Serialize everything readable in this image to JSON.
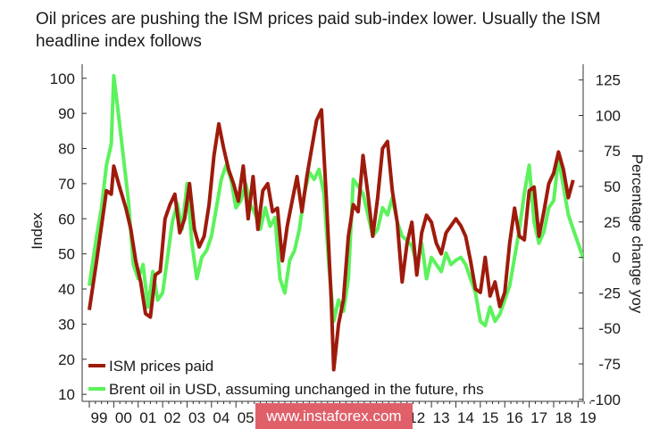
{
  "chart_data": {
    "type": "line",
    "title": "Oil prices are pushing the ISM prices paid sub-index lower. Usually the ISM headline index follows",
    "ylabel_left": "Index",
    "ylabel_right": "Percentage change yoy",
    "ylim_left": [
      8,
      104
    ],
    "yticks_left": [
      10,
      20,
      30,
      40,
      50,
      60,
      70,
      80,
      90,
      100
    ],
    "ylim_right": [
      -101.4,
      136.1
    ],
    "yticks_right": [
      -100,
      -75,
      -50,
      -25,
      0,
      25,
      50,
      75,
      100,
      125
    ],
    "xlim": [
      1999.0,
      2019.5
    ],
    "xticks": [
      {
        "x": 1999.0,
        "label": "99"
      },
      {
        "x": 2000.0,
        "label": "00"
      },
      {
        "x": 2001.0,
        "label": "01"
      },
      {
        "x": 2002.0,
        "label": "02"
      },
      {
        "x": 2003.0,
        "label": "03"
      },
      {
        "x": 2004.0,
        "label": "04"
      },
      {
        "x": 2005.0,
        "label": "05"
      },
      {
        "x": 2006.0,
        "label": "06"
      },
      {
        "x": 2007.0,
        "label": "07"
      },
      {
        "x": 2008.0,
        "label": "08"
      },
      {
        "x": 2009.0,
        "label": "09"
      },
      {
        "x": 2010.0,
        "label": "10"
      },
      {
        "x": 2011.0,
        "label": "11"
      },
      {
        "x": 2012.0,
        "label": "12"
      },
      {
        "x": 2013.0,
        "label": "13"
      },
      {
        "x": 2014.0,
        "label": "14"
      },
      {
        "x": 2015.0,
        "label": "15"
      },
      {
        "x": 2016.0,
        "label": "16"
      },
      {
        "x": 2017.0,
        "label": "17"
      },
      {
        "x": 2018.0,
        "label": "18"
      },
      {
        "x": 2019.0,
        "label": "19"
      }
    ],
    "grid": false,
    "legend_position": "bottom-left",
    "series": [
      {
        "name": "ISM prices paid",
        "axis": "left",
        "color": "#9e1b0c",
        "points": [
          [
            1999.0,
            34
          ],
          [
            1999.3,
            48
          ],
          [
            1999.5,
            58
          ],
          [
            1999.7,
            68
          ],
          [
            1999.9,
            67
          ],
          [
            2000.0,
            75
          ],
          [
            2000.2,
            70
          ],
          [
            2000.5,
            63
          ],
          [
            2000.7,
            57
          ],
          [
            2000.9,
            48
          ],
          [
            2001.1,
            42
          ],
          [
            2001.3,
            33
          ],
          [
            2001.5,
            32
          ],
          [
            2001.7,
            44
          ],
          [
            2001.9,
            45
          ],
          [
            2002.1,
            60
          ],
          [
            2002.3,
            64
          ],
          [
            2002.5,
            67
          ],
          [
            2002.7,
            56
          ],
          [
            2002.9,
            60
          ],
          [
            2003.1,
            70
          ],
          [
            2003.3,
            57
          ],
          [
            2003.5,
            52
          ],
          [
            2003.7,
            55
          ],
          [
            2003.9,
            64
          ],
          [
            2004.1,
            78
          ],
          [
            2004.3,
            87
          ],
          [
            2004.5,
            80
          ],
          [
            2004.7,
            74
          ],
          [
            2004.9,
            70
          ],
          [
            2005.1,
            65
          ],
          [
            2005.3,
            75
          ],
          [
            2005.5,
            60
          ],
          [
            2005.7,
            72
          ],
          [
            2005.9,
            57
          ],
          [
            2006.1,
            68
          ],
          [
            2006.3,
            70
          ],
          [
            2006.5,
            62
          ],
          [
            2006.7,
            63
          ],
          [
            2006.9,
            48
          ],
          [
            2007.1,
            58
          ],
          [
            2007.3,
            65
          ],
          [
            2007.5,
            72
          ],
          [
            2007.7,
            62
          ],
          [
            2007.9,
            72
          ],
          [
            2008.1,
            80
          ],
          [
            2008.3,
            88
          ],
          [
            2008.5,
            91
          ],
          [
            2008.7,
            66
          ],
          [
            2008.9,
            37
          ],
          [
            2009.0,
            17
          ],
          [
            2009.2,
            30
          ],
          [
            2009.4,
            37
          ],
          [
            2009.6,
            55
          ],
          [
            2009.8,
            64
          ],
          [
            2010.0,
            62
          ],
          [
            2010.2,
            78
          ],
          [
            2010.4,
            67
          ],
          [
            2010.6,
            55
          ],
          [
            2010.8,
            66
          ],
          [
            2011.0,
            80
          ],
          [
            2011.2,
            82
          ],
          [
            2011.4,
            68
          ],
          [
            2011.6,
            59
          ],
          [
            2011.8,
            42
          ],
          [
            2012.0,
            53
          ],
          [
            2012.2,
            59
          ],
          [
            2012.4,
            44
          ],
          [
            2012.6,
            56
          ],
          [
            2012.8,
            61
          ],
          [
            2013.0,
            59
          ],
          [
            2013.2,
            53
          ],
          [
            2013.4,
            50
          ],
          [
            2013.6,
            56
          ],
          [
            2013.8,
            58
          ],
          [
            2014.0,
            60
          ],
          [
            2014.2,
            58
          ],
          [
            2014.4,
            55
          ],
          [
            2014.6,
            48
          ],
          [
            2014.8,
            40
          ],
          [
            2015.0,
            39
          ],
          [
            2015.2,
            49
          ],
          [
            2015.4,
            38
          ],
          [
            2015.6,
            42
          ],
          [
            2015.8,
            35
          ],
          [
            2016.0,
            39
          ],
          [
            2016.2,
            53
          ],
          [
            2016.4,
            63
          ],
          [
            2016.6,
            55
          ],
          [
            2016.8,
            54
          ],
          [
            2017.0,
            68
          ],
          [
            2017.2,
            69
          ],
          [
            2017.4,
            55
          ],
          [
            2017.6,
            62
          ],
          [
            2017.8,
            70
          ],
          [
            2018.0,
            73
          ],
          [
            2018.2,
            79
          ],
          [
            2018.4,
            74
          ],
          [
            2018.6,
            66
          ],
          [
            2018.8,
            71
          ]
        ]
      },
      {
        "name": "Brent oil in USD, assuming unchanged in the future, rhs",
        "axis": "right",
        "color": "#5cf25c",
        "points": [
          [
            1999.0,
            -20
          ],
          [
            1999.3,
            15
          ],
          [
            1999.5,
            35
          ],
          [
            1999.7,
            65
          ],
          [
            1999.9,
            80
          ],
          [
            2000.0,
            128
          ],
          [
            2000.2,
            100
          ],
          [
            2000.4,
            70
          ],
          [
            2000.6,
            40
          ],
          [
            2000.8,
            -5
          ],
          [
            2001.0,
            -15
          ],
          [
            2001.2,
            -5
          ],
          [
            2001.4,
            -35
          ],
          [
            2001.6,
            -10
          ],
          [
            2001.8,
            -30
          ],
          [
            2002.0,
            -25
          ],
          [
            2002.2,
            0
          ],
          [
            2002.4,
            25
          ],
          [
            2002.6,
            38
          ],
          [
            2002.8,
            20
          ],
          [
            2003.0,
            52
          ],
          [
            2003.2,
            10
          ],
          [
            2003.4,
            -15
          ],
          [
            2003.6,
            0
          ],
          [
            2003.8,
            5
          ],
          [
            2004.0,
            15
          ],
          [
            2004.2,
            35
          ],
          [
            2004.4,
            55
          ],
          [
            2004.6,
            65
          ],
          [
            2004.8,
            55
          ],
          [
            2005.0,
            35
          ],
          [
            2005.2,
            40
          ],
          [
            2005.4,
            52
          ],
          [
            2005.6,
            37
          ],
          [
            2005.8,
            30
          ],
          [
            2006.0,
            20
          ],
          [
            2006.2,
            35
          ],
          [
            2006.4,
            22
          ],
          [
            2006.6,
            28
          ],
          [
            2006.8,
            -15
          ],
          [
            2007.0,
            -25
          ],
          [
            2007.2,
            -2
          ],
          [
            2007.4,
            5
          ],
          [
            2007.6,
            20
          ],
          [
            2007.8,
            45
          ],
          [
            2008.0,
            60
          ],
          [
            2008.2,
            55
          ],
          [
            2008.4,
            62
          ],
          [
            2008.6,
            45
          ],
          [
            2008.8,
            -5
          ],
          [
            2009.0,
            -45
          ],
          [
            2009.2,
            -30
          ],
          [
            2009.4,
            -38
          ],
          [
            2009.6,
            -15
          ],
          [
            2009.8,
            55
          ],
          [
            2010.0,
            50
          ],
          [
            2010.2,
            45
          ],
          [
            2010.4,
            30
          ],
          [
            2010.6,
            15
          ],
          [
            2010.8,
            20
          ],
          [
            2011.0,
            35
          ],
          [
            2011.2,
            30
          ],
          [
            2011.4,
            42
          ],
          [
            2011.6,
            25
          ],
          [
            2011.8,
            15
          ],
          [
            2012.0,
            12
          ],
          [
            2012.2,
            8
          ],
          [
            2012.4,
            -5
          ],
          [
            2012.6,
            10
          ],
          [
            2012.8,
            -15
          ],
          [
            2013.0,
            0
          ],
          [
            2013.2,
            -5
          ],
          [
            2013.4,
            -10
          ],
          [
            2013.6,
            3
          ],
          [
            2013.8,
            -5
          ],
          [
            2014.0,
            -2
          ],
          [
            2014.2,
            0
          ],
          [
            2014.4,
            -5
          ],
          [
            2014.6,
            -15
          ],
          [
            2014.8,
            -25
          ],
          [
            2015.0,
            -45
          ],
          [
            2015.2,
            -48
          ],
          [
            2015.4,
            -35
          ],
          [
            2015.6,
            -45
          ],
          [
            2015.8,
            -40
          ],
          [
            2016.0,
            -30
          ],
          [
            2016.2,
            -20
          ],
          [
            2016.4,
            0
          ],
          [
            2016.6,
            20
          ],
          [
            2016.8,
            45
          ],
          [
            2017.0,
            65
          ],
          [
            2017.2,
            25
          ],
          [
            2017.4,
            10
          ],
          [
            2017.6,
            18
          ],
          [
            2017.8,
            35
          ],
          [
            2018.0,
            40
          ],
          [
            2018.2,
            70
          ],
          [
            2018.4,
            50
          ],
          [
            2018.6,
            30
          ],
          [
            2018.8,
            20
          ],
          [
            2019.0,
            10
          ],
          [
            2019.2,
            0
          ],
          [
            2019.3,
            -3
          ],
          [
            2019.45,
            -8
          ]
        ]
      }
    ]
  },
  "watermark": "www.instaforex.com",
  "colors": {
    "watermark_bg": "#e0606a"
  }
}
